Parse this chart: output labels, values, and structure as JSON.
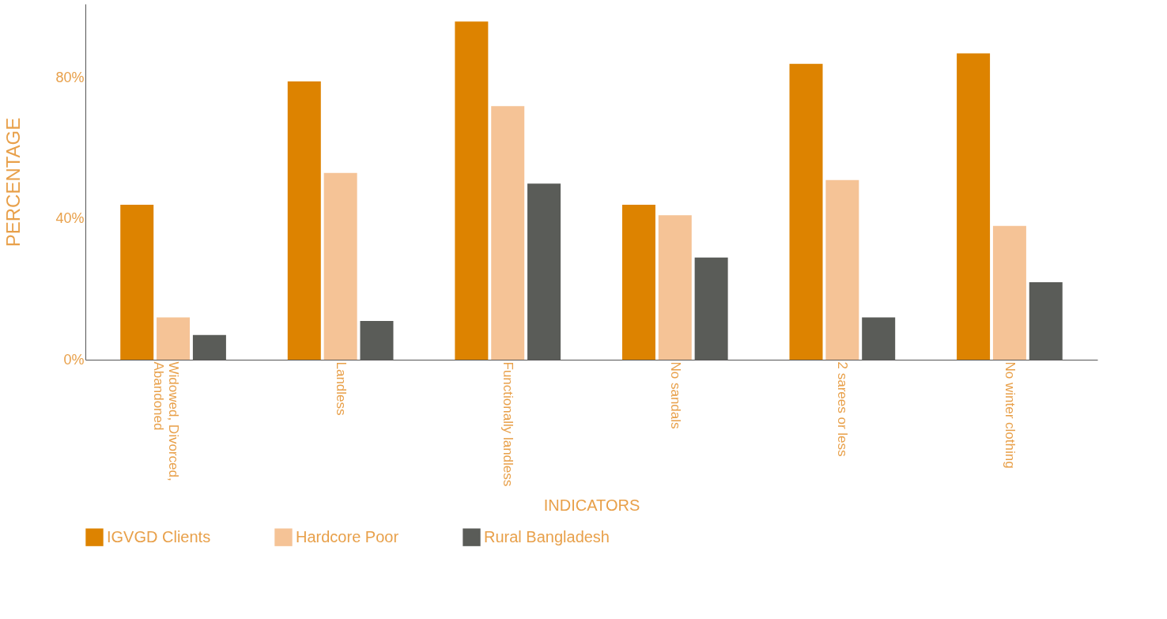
{
  "chart_data": {
    "type": "bar",
    "xlabel": "INDICATORS",
    "ylabel": "PERCENTAGE",
    "categories": [
      "Widowed, Divorced, Abandoned",
      "Landless",
      "Functionally landless",
      "No sandals",
      "2 sarees or less",
      "No winter clothing"
    ],
    "series": [
      {
        "name": "IGVGD Clients",
        "color": "#dd8300",
        "values": [
          44,
          79,
          96,
          44,
          84,
          87
        ]
      },
      {
        "name": "Hardcore Poor",
        "color": "#f5c396",
        "values": [
          12,
          53,
          72,
          41,
          51,
          38
        ]
      },
      {
        "name": "Rural Bangladesh",
        "color": "#5a5c58",
        "values": [
          7,
          11,
          50,
          29,
          12,
          22
        ]
      }
    ],
    "ylim": [
      0,
      101
    ],
    "yticks": [
      {
        "value": 0,
        "label": "0%"
      },
      {
        "value": 40,
        "label": "40%"
      },
      {
        "value": 80,
        "label": "80%"
      }
    ],
    "grid": false,
    "legend": "bottom"
  }
}
